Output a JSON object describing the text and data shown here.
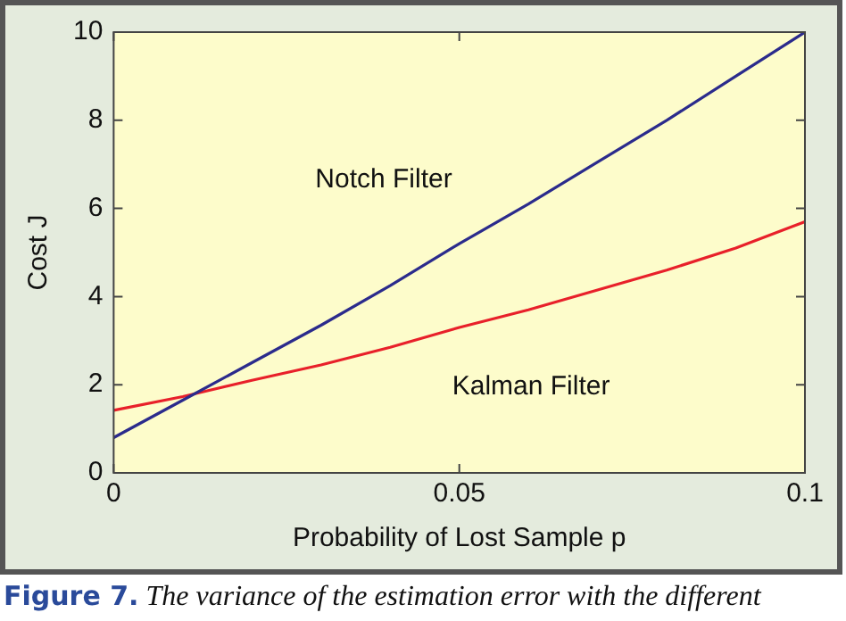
{
  "chart_data": {
    "type": "line",
    "xlabel": "Probability of Lost Sample p",
    "ylabel": "Cost J",
    "x": [
      0,
      0.01,
      0.02,
      0.03,
      0.04,
      0.05,
      0.06,
      0.07,
      0.08,
      0.09,
      0.1
    ],
    "series": [
      {
        "name": "Notch Filter",
        "color": "#2b2b8c",
        "values": [
          0.8,
          1.65,
          2.5,
          3.35,
          4.25,
          5.2,
          6.1,
          7.05,
          8.0,
          9.0,
          10.0
        ]
      },
      {
        "name": "Kalman Filter",
        "color": "#e8202a",
        "values": [
          1.42,
          1.73,
          2.1,
          2.45,
          2.85,
          3.3,
          3.7,
          4.15,
          4.6,
          5.1,
          5.7
        ]
      }
    ],
    "xlim": [
      0,
      0.1
    ],
    "xticks": [
      0,
      0.05,
      0.1
    ],
    "ylim": [
      0,
      10
    ],
    "yticks": [
      0,
      2,
      4,
      6,
      8,
      10
    ],
    "grid": false,
    "legend": false,
    "marker": "none",
    "line_style": "solid",
    "annotations": [
      "Figure 7. The variance of the estimation error with the different"
    ]
  }
}
